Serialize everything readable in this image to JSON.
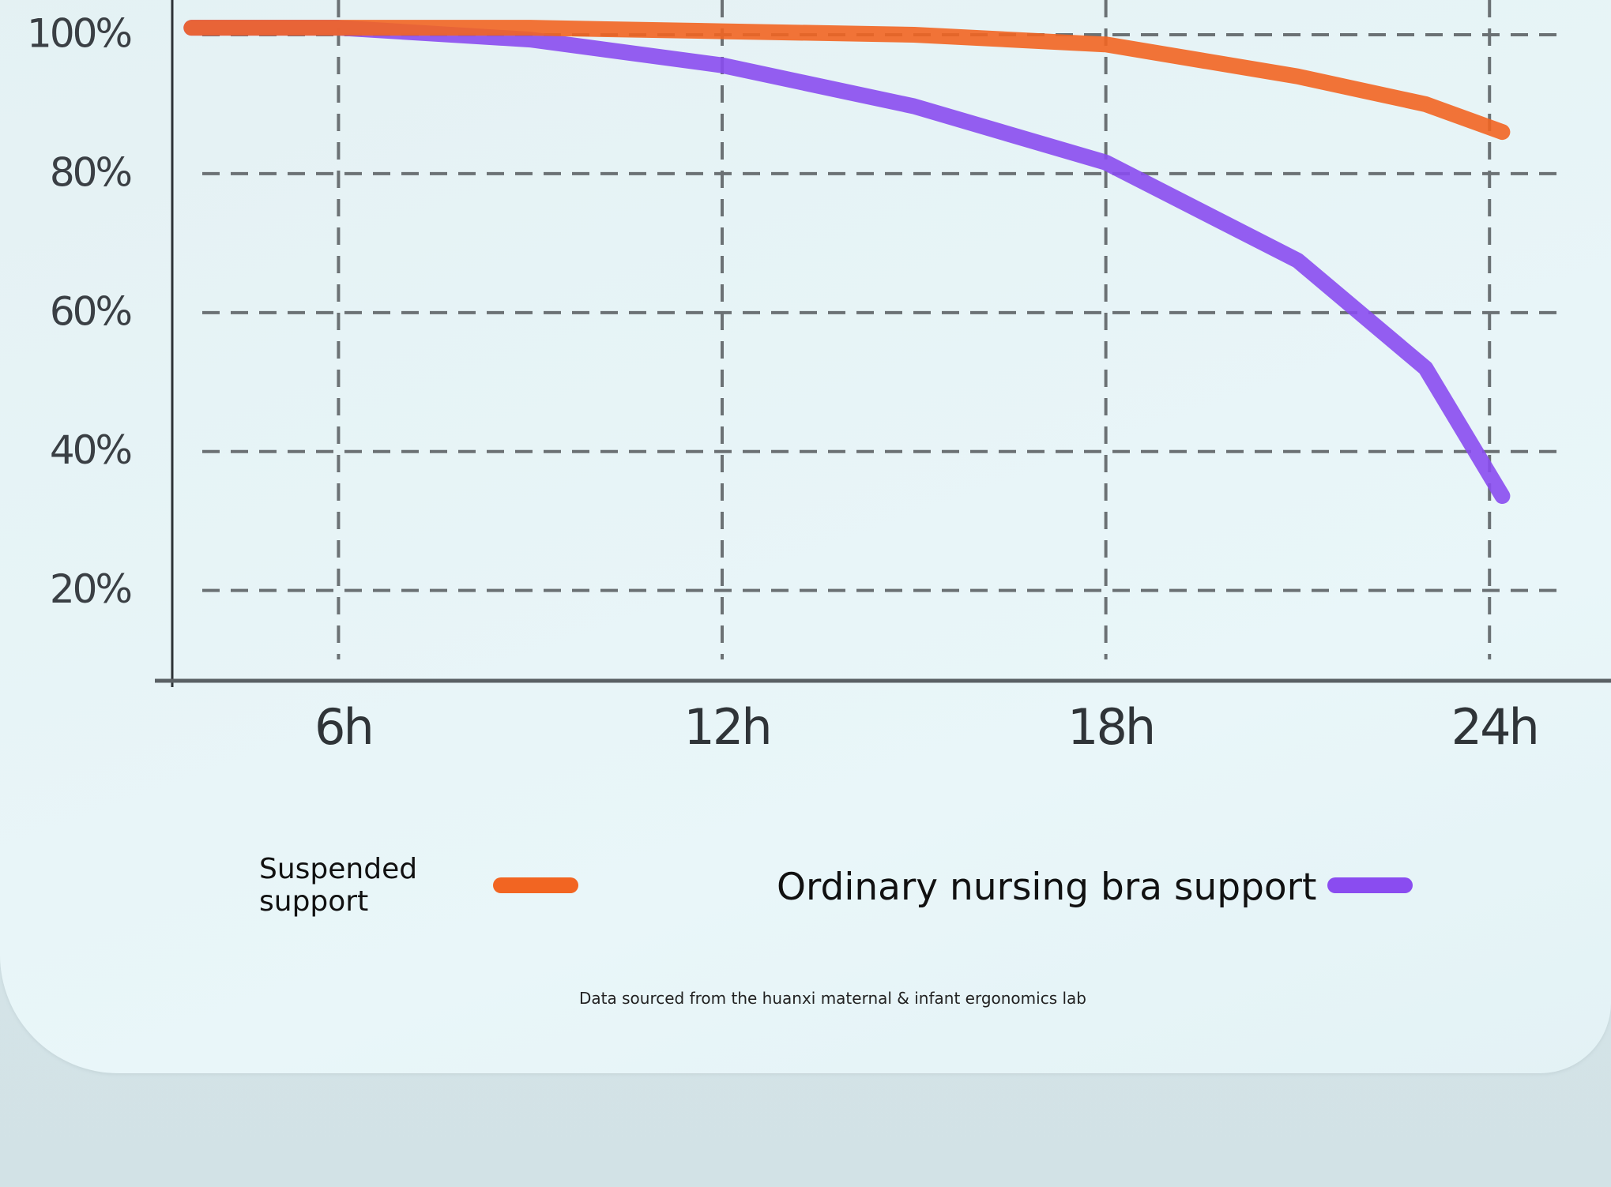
{
  "chart_data": {
    "type": "line",
    "x": [
      3.7,
      6,
      9,
      12,
      15,
      18,
      21,
      23,
      24.2
    ],
    "series": [
      {
        "name": "Suspended support",
        "color": "#f26522",
        "values": [
          101,
          101,
          101,
          100.5,
          100,
          98.6,
          94,
          90,
          86
        ]
      },
      {
        "name": "Ordinary nursing bra support",
        "color": "#8a4cf0",
        "values": [
          101,
          101,
          99.3,
          95.6,
          89.7,
          81.6,
          67.5,
          52,
          33.6
        ]
      }
    ],
    "xlim": [
      3.4,
      25.9
    ],
    "ylim": [
      7,
      105
    ],
    "xticks": [
      {
        "value": 6,
        "label": "6h"
      },
      {
        "value": 12,
        "label": "12h"
      },
      {
        "value": 18,
        "label": "18h"
      },
      {
        "value": 24,
        "label": "24h"
      }
    ],
    "yticks": [
      {
        "value": 20,
        "label": "20%"
      },
      {
        "value": 40,
        "label": "40%"
      },
      {
        "value": 60,
        "label": "60%"
      },
      {
        "value": 80,
        "label": "80%"
      },
      {
        "value": 100,
        "label": "100%"
      }
    ],
    "grid": true,
    "note": "Data sourced from the huanxi maternal & infant ergonomics lab"
  }
}
